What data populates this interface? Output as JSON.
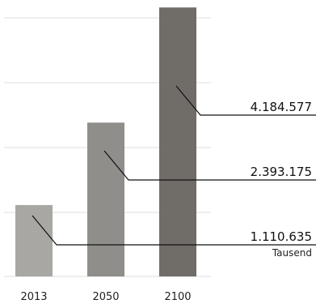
{
  "chart_data": {
    "type": "bar",
    "categories": [
      "2013",
      "2050",
      "2100"
    ],
    "values": [
      1110.635,
      2393.175,
      4184.577
    ],
    "value_labels": [
      "1.110.635",
      "2.393.175",
      "4.184.577"
    ],
    "unit_label": "Tausend",
    "ylim": [
      0,
      4200
    ],
    "grid": true,
    "colors": [
      "#a8a7a3",
      "#8f8e8b",
      "#706c68"
    ],
    "gridline_color": "#e3e3e3",
    "leader_color": "#111111",
    "xlabel": "",
    "ylabel": ""
  }
}
